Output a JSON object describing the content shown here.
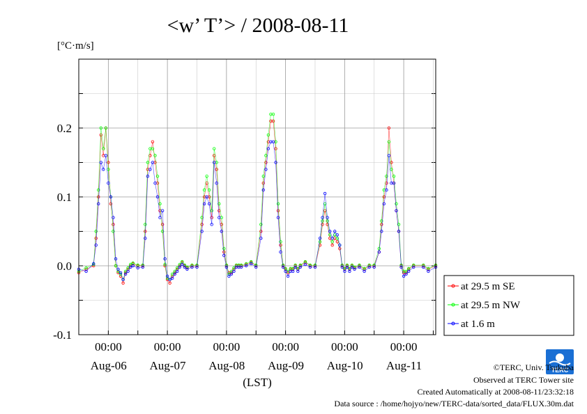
{
  "chart_data": {
    "type": "line",
    "title": "<w’ T’> / 2008-08-11",
    "ylabel_unit": "[°C·m/s]",
    "xlabel": "(LST)",
    "ylim": [
      -0.1,
      0.3
    ],
    "y_ticks": [
      {
        "value": 0.2,
        "label": "0.2"
      },
      {
        "value": 0.1,
        "label": "0.1"
      },
      {
        "value": 0.0,
        "label": "0.0"
      },
      {
        "value": -0.1,
        "label": "-0.1"
      }
    ],
    "x_unit": "hours since Aug-05 12:00 LST",
    "xlim": [
      0,
      145
    ],
    "x_time_ticks": [
      12,
      36,
      60,
      84,
      108,
      132
    ],
    "x_time_labels": [
      "00:00",
      "00:00",
      "00:00",
      "00:00",
      "00:00",
      "00:00"
    ],
    "x_date_labels": [
      {
        "hour": 24,
        "label": "Aug-06"
      },
      {
        "hour": 48,
        "label": "Aug-07"
      },
      {
        "hour": 72,
        "label": "Aug-08"
      },
      {
        "hour": 96,
        "label": "Aug-09"
      },
      {
        "hour": 120,
        "label": "Aug-10"
      },
      {
        "hour": 144,
        "label": "Aug-11"
      }
    ],
    "grid": true,
    "legend_position": "right-bottom",
    "series": [
      {
        "name": "at 29.5 m SE",
        "color": "#ff0000",
        "x": [
          0,
          3,
          6,
          7,
          8,
          9,
          10,
          11,
          12,
          13,
          14,
          15,
          16,
          17,
          18,
          19,
          20,
          21,
          22,
          24,
          26,
          27,
          28,
          29,
          30,
          31,
          32,
          33,
          34,
          35,
          36,
          37,
          38,
          39,
          40,
          41,
          42,
          43,
          44,
          46,
          48,
          50,
          51,
          52,
          53,
          54,
          55,
          56,
          57,
          58,
          59,
          60,
          61,
          62,
          63,
          64,
          65,
          66,
          68,
          70,
          72,
          74,
          75,
          76,
          77,
          78,
          79,
          80,
          81,
          82,
          83,
          84,
          85,
          86,
          87,
          88,
          89,
          90,
          92,
          94,
          96,
          98,
          99,
          100,
          101,
          102,
          103,
          104,
          105,
          106,
          107,
          108,
          109,
          110,
          111,
          112,
          114,
          116,
          118,
          120,
          122,
          123,
          124,
          125,
          126,
          127,
          128,
          129,
          130,
          131,
          132,
          133,
          134,
          136,
          140,
          142,
          145
        ],
        "y": [
          -0.01,
          -0.005,
          0.0,
          0.04,
          0.1,
          0.19,
          0.16,
          0.2,
          0.15,
          0.09,
          0.06,
          0.0,
          -0.01,
          -0.015,
          -0.025,
          -0.01,
          -0.005,
          0.0,
          0.003,
          0.0,
          0.0,
          0.05,
          0.14,
          0.16,
          0.18,
          0.15,
          0.12,
          0.08,
          0.06,
          0.0,
          -0.02,
          -0.025,
          -0.015,
          -0.01,
          -0.005,
          0.0,
          0.005,
          0.0,
          -0.003,
          0.0,
          0.0,
          0.06,
          0.1,
          0.12,
          0.1,
          0.07,
          0.16,
          0.14,
          0.08,
          0.06,
          0.02,
          0.0,
          -0.01,
          -0.01,
          -0.005,
          0.0,
          0.0,
          0.0,
          0.002,
          0.005,
          0.0,
          0.05,
          0.12,
          0.15,
          0.18,
          0.21,
          0.21,
          0.17,
          0.08,
          0.03,
          0.0,
          -0.005,
          -0.01,
          -0.005,
          -0.005,
          0.0,
          -0.005,
          0.0,
          0.005,
          0.0,
          0.0,
          0.03,
          0.06,
          0.08,
          0.06,
          0.04,
          0.03,
          0.04,
          0.035,
          0.025,
          0.0,
          -0.005,
          0.0,
          -0.005,
          0.0,
          -0.003,
          0.0,
          -0.005,
          0.0,
          0.0,
          0.02,
          0.06,
          0.1,
          0.12,
          0.2,
          0.15,
          0.12,
          0.08,
          0.05,
          0.0,
          -0.01,
          -0.01,
          -0.005,
          0.0,
          0.0,
          -0.005,
          0.0
        ]
      },
      {
        "name": "at 29.5 m NW",
        "color": "#00ff00",
        "x": [
          0,
          3,
          6,
          7,
          8,
          9,
          10,
          11,
          12,
          13,
          14,
          15,
          16,
          17,
          18,
          19,
          20,
          21,
          22,
          24,
          26,
          27,
          28,
          29,
          30,
          31,
          32,
          33,
          34,
          35,
          36,
          37,
          38,
          39,
          40,
          41,
          42,
          43,
          44,
          46,
          48,
          50,
          51,
          52,
          53,
          54,
          55,
          56,
          57,
          58,
          59,
          60,
          61,
          62,
          63,
          64,
          65,
          66,
          68,
          70,
          72,
          74,
          75,
          76,
          77,
          78,
          79,
          80,
          81,
          82,
          83,
          84,
          85,
          86,
          87,
          88,
          89,
          90,
          92,
          94,
          96,
          98,
          99,
          100,
          101,
          102,
          103,
          104,
          105,
          106,
          107,
          108,
          109,
          110,
          111,
          112,
          114,
          116,
          118,
          120,
          122,
          123,
          124,
          125,
          126,
          127,
          128,
          129,
          130,
          131,
          132,
          133,
          134,
          136,
          140,
          142,
          145
        ],
        "y": [
          -0.008,
          -0.003,
          0.002,
          0.05,
          0.11,
          0.2,
          0.17,
          0.2,
          0.14,
          0.1,
          0.05,
          0.0,
          -0.008,
          -0.012,
          -0.02,
          -0.008,
          -0.003,
          0.002,
          0.004,
          0.001,
          0.001,
          0.06,
          0.15,
          0.17,
          0.17,
          0.16,
          0.13,
          0.09,
          0.05,
          0.002,
          -0.018,
          -0.02,
          -0.012,
          -0.008,
          -0.003,
          0.002,
          0.006,
          0.001,
          -0.002,
          0.001,
          0.001,
          0.07,
          0.11,
          0.13,
          0.11,
          0.08,
          0.17,
          0.15,
          0.09,
          0.07,
          0.025,
          0.001,
          -0.012,
          -0.008,
          -0.003,
          0.001,
          0.001,
          0.001,
          0.003,
          0.006,
          0.001,
          0.06,
          0.13,
          0.16,
          0.19,
          0.22,
          0.22,
          0.18,
          0.09,
          0.035,
          0.001,
          -0.004,
          -0.008,
          -0.004,
          -0.004,
          0.001,
          -0.004,
          0.001,
          0.006,
          0.001,
          0.001,
          0.035,
          0.065,
          0.09,
          0.065,
          0.045,
          0.035,
          0.045,
          0.04,
          0.03,
          0.001,
          -0.004,
          0.001,
          -0.004,
          0.001,
          -0.002,
          0.001,
          -0.004,
          0.001,
          0.001,
          0.025,
          0.065,
          0.11,
          0.13,
          0.18,
          0.14,
          0.13,
          0.09,
          0.06,
          0.001,
          -0.008,
          -0.008,
          -0.004,
          0.001,
          0.001,
          -0.004,
          0.001
        ]
      },
      {
        "name": "at 1.6 m",
        "color": "#0000ff",
        "x": [
          0,
          3,
          6,
          7,
          8,
          9,
          10,
          11,
          12,
          13,
          14,
          15,
          16,
          17,
          18,
          19,
          20,
          21,
          22,
          24,
          26,
          27,
          28,
          29,
          30,
          31,
          32,
          33,
          34,
          35,
          36,
          37,
          38,
          39,
          40,
          41,
          42,
          43,
          44,
          46,
          48,
          50,
          51,
          52,
          53,
          54,
          55,
          56,
          57,
          58,
          59,
          60,
          61,
          62,
          63,
          64,
          65,
          66,
          68,
          70,
          72,
          74,
          75,
          76,
          77,
          78,
          79,
          80,
          81,
          82,
          83,
          84,
          85,
          86,
          87,
          88,
          89,
          90,
          92,
          94,
          96,
          98,
          99,
          100,
          101,
          102,
          103,
          104,
          105,
          106,
          107,
          108,
          109,
          110,
          111,
          112,
          114,
          116,
          118,
          120,
          122,
          123,
          124,
          125,
          126,
          127,
          128,
          129,
          130,
          131,
          132,
          133,
          134,
          136,
          140,
          142,
          145
        ],
        "y": [
          -0.005,
          -0.008,
          0.003,
          0.03,
          0.09,
          0.15,
          0.14,
          0.16,
          0.12,
          0.1,
          0.07,
          0.01,
          -0.005,
          -0.01,
          -0.02,
          -0.012,
          -0.008,
          -0.002,
          0.0,
          -0.003,
          -0.002,
          0.04,
          0.13,
          0.14,
          0.15,
          0.12,
          0.1,
          0.07,
          0.08,
          0.01,
          -0.015,
          -0.02,
          -0.018,
          -0.012,
          -0.008,
          -0.002,
          0.002,
          -0.002,
          -0.005,
          -0.002,
          -0.002,
          0.05,
          0.09,
          0.1,
          0.09,
          0.06,
          0.15,
          0.12,
          0.07,
          0.05,
          0.015,
          -0.002,
          -0.015,
          -0.012,
          -0.008,
          -0.002,
          -0.002,
          -0.002,
          0.0,
          0.003,
          -0.002,
          0.04,
          0.11,
          0.14,
          0.17,
          0.18,
          0.18,
          0.15,
          0.07,
          0.02,
          -0.002,
          -0.008,
          -0.015,
          -0.008,
          -0.008,
          -0.002,
          -0.008,
          -0.002,
          0.002,
          -0.002,
          -0.002,
          0.04,
          0.07,
          0.105,
          0.07,
          0.05,
          0.04,
          0.05,
          0.045,
          0.03,
          -0.002,
          -0.008,
          -0.002,
          -0.008,
          -0.002,
          -0.005,
          -0.002,
          -0.008,
          -0.002,
          -0.002,
          0.02,
          0.05,
          0.09,
          0.11,
          0.16,
          0.12,
          0.12,
          0.08,
          0.05,
          -0.002,
          -0.015,
          -0.012,
          -0.008,
          -0.002,
          -0.002,
          -0.008,
          -0.002
        ]
      }
    ]
  },
  "credits": {
    "copyright": "©TERC, Univ. Tsukuba",
    "observed": "Observed at TERC Tower site",
    "created": "Created Automatically at 2008-08-11/23:32:18",
    "source": "Data source : /home/hojyo/new/TERC-data/sorted_data/FLUX.30m.dat",
    "logo_text": "TERC",
    "logo_color": "#1a6fd4"
  }
}
